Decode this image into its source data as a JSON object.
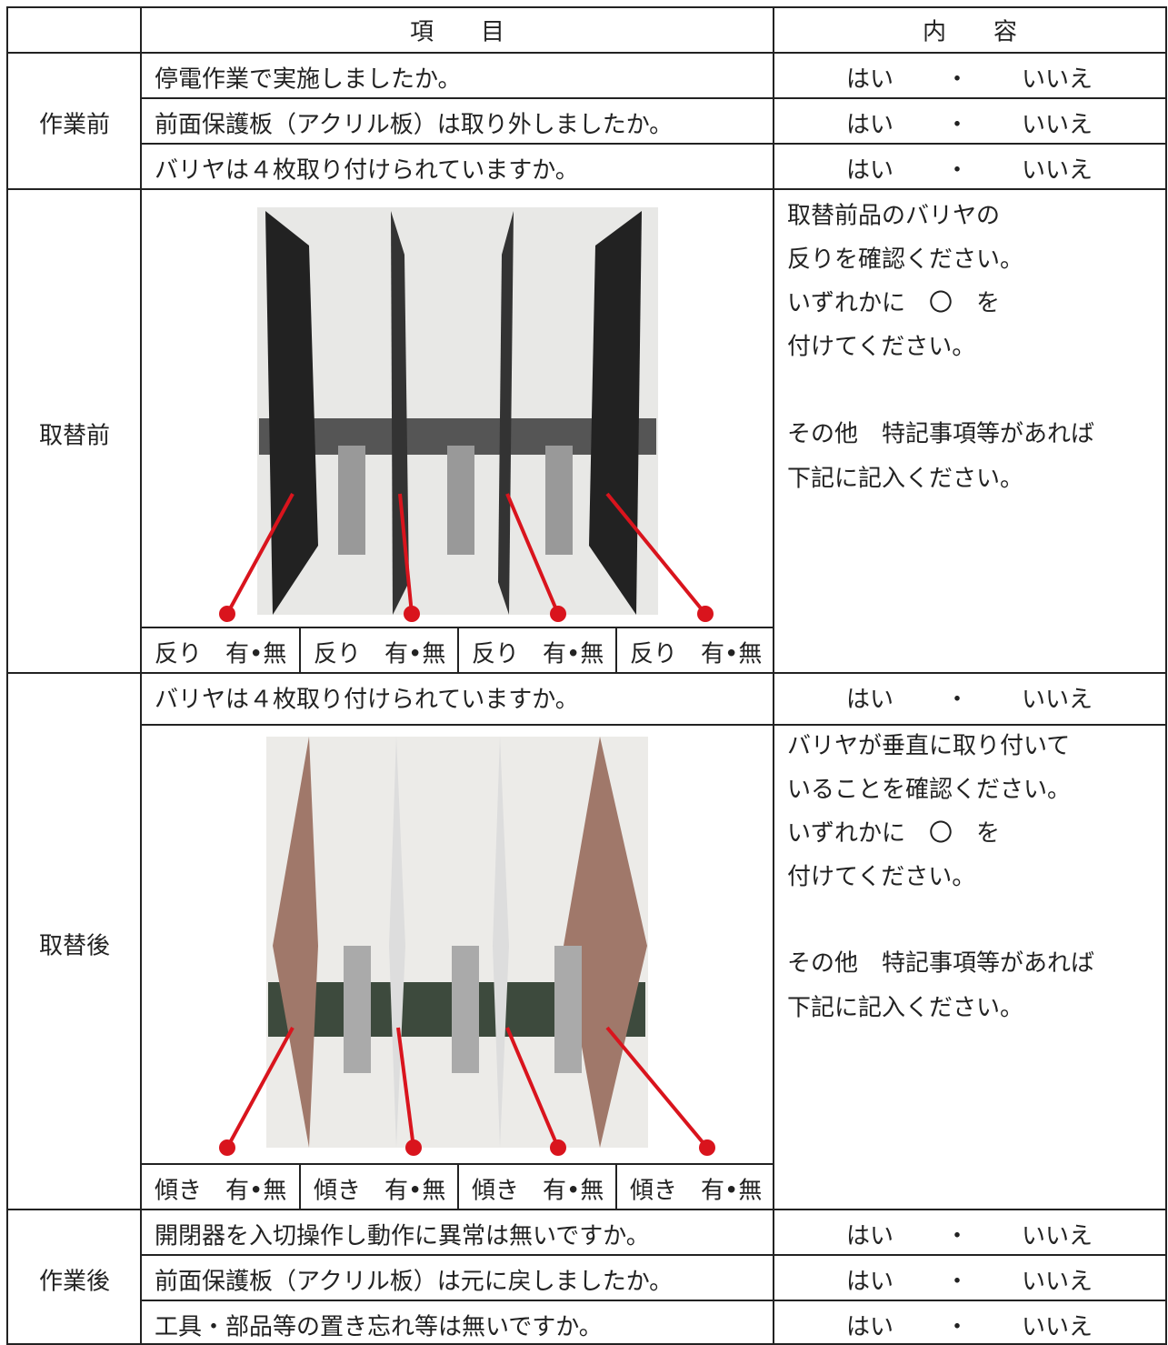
{
  "header": {
    "item": "項　　目",
    "content": "内　　容"
  },
  "before_work": {
    "label": "作業前",
    "rows": [
      {
        "item": "停電作業で実施しましたか。",
        "yes": "はい",
        "sep": "・",
        "no": "いいえ"
      },
      {
        "item": "前面保護板（アクリル板）は取り外しましたか。",
        "yes": "はい",
        "sep": "・",
        "no": "いいえ"
      },
      {
        "item": "バリヤは４枚取り付けられていますか。",
        "yes": "はい",
        "sep": "・",
        "no": "いいえ"
      }
    ]
  },
  "before_replace": {
    "label": "取替前",
    "checks": [
      "反り　有•無",
      "反り　有•無",
      "反り　有•無",
      "反り　有•無"
    ],
    "notes": [
      "取替前品のバリヤの",
      "反りを確認ください。",
      "いずれかに　〇　を",
      "付けてください。",
      "その他　特記事項等があれば",
      "下記に記入ください。"
    ]
  },
  "after_replace": {
    "label": "取替後",
    "question": {
      "item": "バリヤは４枚取り付けられていますか。",
      "yes": "はい",
      "sep": "・",
      "no": "いいえ"
    },
    "checks": [
      "傾き　有•無",
      "傾き　有•無",
      "傾き　有•無",
      "傾き　有•無"
    ],
    "notes": [
      "バリヤが垂直に取り付いて",
      "いることを確認ください。",
      "いずれかに　〇　を",
      "付けてください。",
      "その他　特記事項等があれば",
      "下記に記入ください。"
    ]
  },
  "after_work": {
    "label": "作業後",
    "rows": [
      {
        "item": "開閉器を入切操作し動作に異常は無いですか。",
        "yes": "はい",
        "sep": "・",
        "no": "いいえ"
      },
      {
        "item": "前面保護板（アクリル板）は元に戻しましたか。",
        "yes": "はい",
        "sep": "・",
        "no": "いいえ"
      },
      {
        "item": "工具・部品等の置き忘れ等は無いですか。",
        "yes": "はい",
        "sep": "・",
        "no": "いいえ"
      }
    ]
  }
}
